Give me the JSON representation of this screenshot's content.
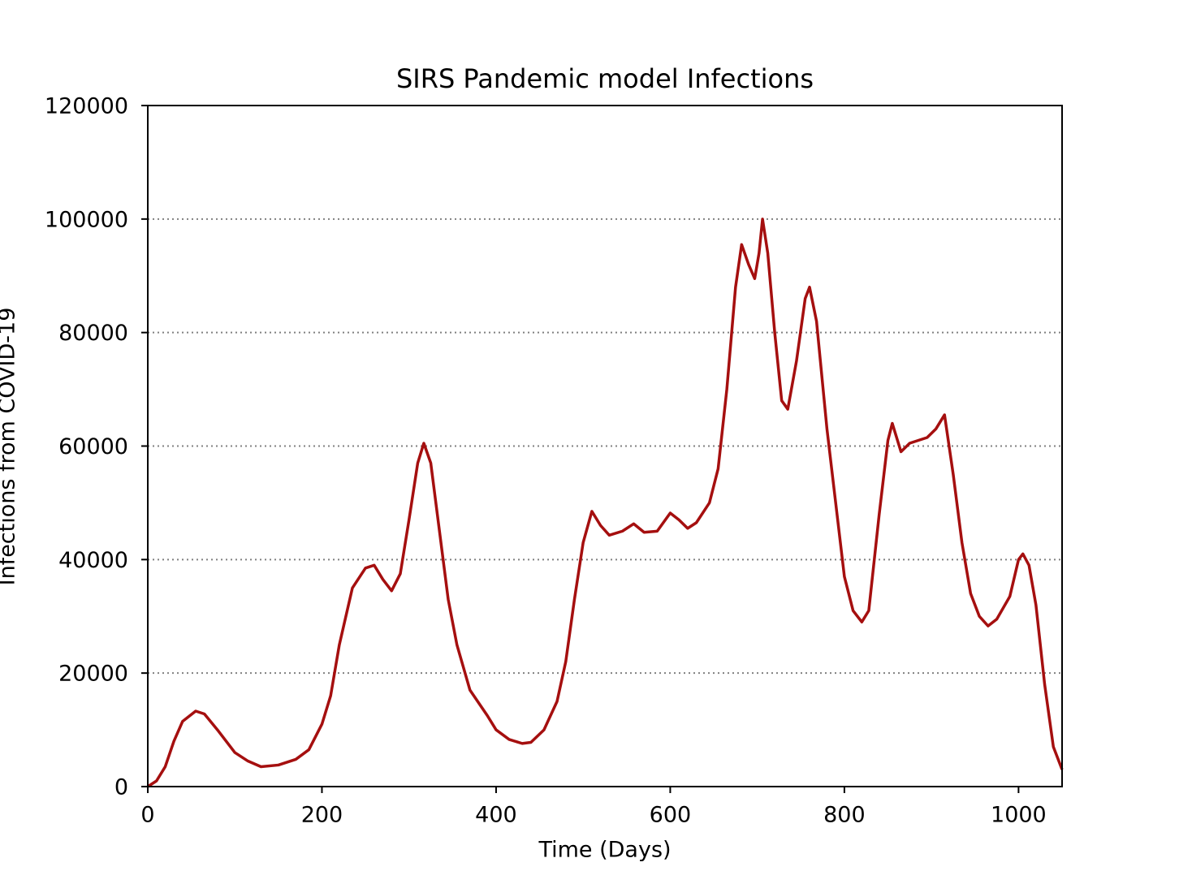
{
  "chart_data": {
    "type": "line",
    "title": "SIRS Pandemic model Infections",
    "x_label": "Time (Days)",
    "y_label": "Infections from COVID-19",
    "xlim": [
      0,
      1050
    ],
    "ylim": [
      0,
      120000
    ],
    "xticks": [
      0,
      200,
      400,
      600,
      800,
      1000
    ],
    "yticks": [
      0,
      20000,
      40000,
      60000,
      80000,
      100000,
      120000
    ],
    "grid": true,
    "series": [
      {
        "color": "#a50f0f",
        "x": [
          0,
          10,
          20,
          30,
          40,
          55,
          65,
          80,
          100,
          115,
          130,
          150,
          170,
          185,
          200,
          210,
          220,
          235,
          250,
          260,
          270,
          280,
          290,
          300,
          310,
          317,
          325,
          335,
          345,
          355,
          370,
          390,
          400,
          415,
          430,
          440,
          455,
          470,
          480,
          490,
          500,
          510,
          520,
          530,
          545,
          558,
          570,
          585,
          600,
          610,
          620,
          630,
          645,
          655,
          665,
          675,
          682,
          690,
          697,
          702,
          706,
          712,
          720,
          728,
          735,
          745,
          755,
          760,
          768,
          780,
          790,
          800,
          810,
          820,
          828,
          840,
          850,
          855,
          865,
          875,
          885,
          895,
          905,
          915,
          925,
          935,
          945,
          955,
          965,
          975,
          990,
          1000,
          1005,
          1012,
          1020,
          1030,
          1040,
          1050
        ],
        "values": [
          0,
          1000,
          3500,
          8000,
          11500,
          13300,
          12800,
          10000,
          6000,
          4500,
          3500,
          3800,
          4800,
          6500,
          11000,
          16000,
          25000,
          35000,
          38500,
          39000,
          36500,
          34500,
          37500,
          47000,
          57000,
          60500,
          57000,
          45000,
          33000,
          25000,
          17000,
          12500,
          10000,
          8300,
          7600,
          7800,
          10000,
          15000,
          22000,
          33000,
          43000,
          48500,
          46000,
          44300,
          45000,
          46300,
          44800,
          45000,
          48200,
          47000,
          45500,
          46500,
          50000,
          56000,
          70000,
          88000,
          95500,
          92000,
          89500,
          94000,
          100000,
          94000,
          80000,
          68000,
          66500,
          75000,
          86000,
          88000,
          82000,
          63000,
          50000,
          37000,
          31000,
          29000,
          31000,
          48000,
          61000,
          64000,
          59000,
          60500,
          61000,
          61500,
          63000,
          65500,
          55000,
          43000,
          34000,
          30000,
          28300,
          29500,
          33500,
          40000,
          41000,
          39000,
          32000,
          18000,
          7000,
          3000
        ]
      }
    ]
  }
}
